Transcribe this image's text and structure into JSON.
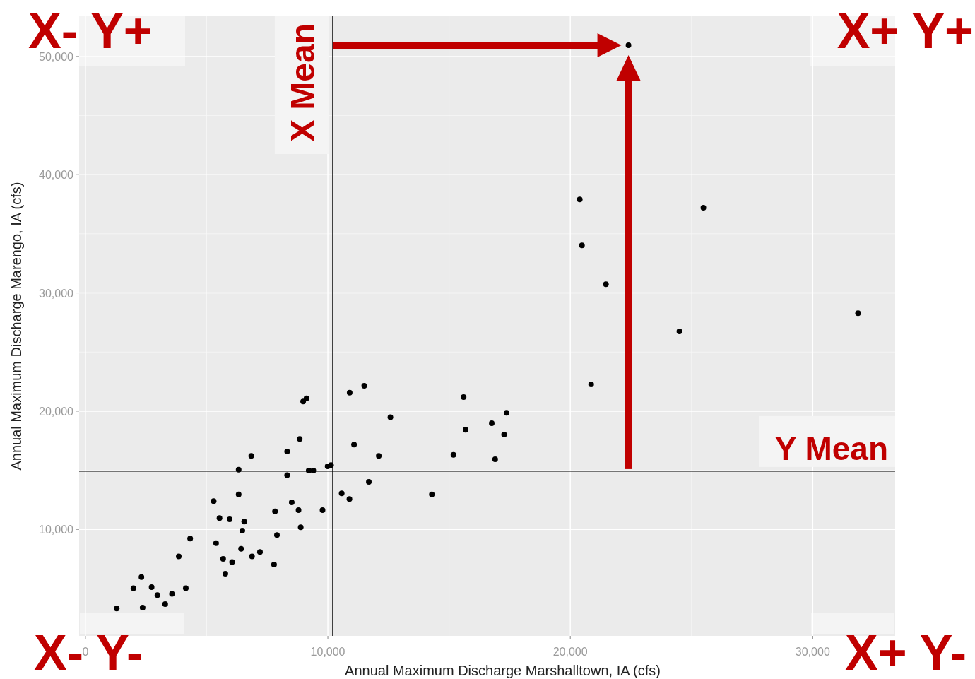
{
  "chart_data": {
    "type": "scatter",
    "xlabel": "Annual Maximum Discharge Marshalltown, IA (cfs)",
    "ylabel": "Annual Maximum Discharge Marengo, IA (cfs)",
    "xlim": [
      -260,
      33400
    ],
    "ylim": [
      990,
      53400
    ],
    "xticks": [
      {
        "value": 0,
        "label": "0"
      },
      {
        "value": 10000,
        "label": "10,000"
      },
      {
        "value": 20000,
        "label": "20,000"
      },
      {
        "value": 30000,
        "label": "30,000"
      }
    ],
    "yticks": [
      {
        "value": 10000,
        "label": "10,000"
      },
      {
        "value": 20000,
        "label": "20,000"
      },
      {
        "value": 30000,
        "label": "30,000"
      },
      {
        "value": 40000,
        "label": "40,000"
      },
      {
        "value": 50000,
        "label": "50,000"
      }
    ],
    "grid": true,
    "marker": "circle",
    "series": [
      {
        "color": "#000000",
        "x": [
          10900,
          8980,
          9120,
          8840,
          11080,
          8320,
          6840,
          6320,
          9990,
          10130,
          9210,
          9400,
          8320,
          6320,
          5290,
          10570,
          10890,
          8510,
          7820,
          8790,
          9780,
          5530,
          5950,
          6550,
          6470,
          8880,
          7900,
          4320,
          5390,
          6420,
          7200,
          3850,
          5680,
          6870,
          6050,
          7780,
          5770,
          2310,
          1980,
          2730,
          4140,
          2970,
          3570,
          3290,
          1290,
          2360,
          11500,
          12580,
          12100,
          11690,
          14290,
          15180,
          15600,
          15680,
          16760,
          17370,
          17270,
          16900,
          20390,
          20480,
          21470,
          20860,
          22400,
          25490,
          24500,
          31870
        ],
        "values": [
          21570,
          20820,
          21090,
          17650,
          17170,
          16590,
          16210,
          15050,
          15340,
          15440,
          14980,
          14980,
          14580,
          12950,
          12390,
          13050,
          12570,
          12290,
          11530,
          11630,
          11630,
          10950,
          10850,
          10650,
          9900,
          10180,
          9520,
          9220,
          8840,
          8360,
          8090,
          7710,
          7510,
          7710,
          7230,
          7030,
          6250,
          5970,
          5020,
          5120,
          5020,
          4440,
          4540,
          3680,
          3310,
          3380,
          22150,
          19480,
          16210,
          14020,
          12950,
          16310,
          21190,
          18430,
          18980,
          19860,
          18020,
          15930,
          37910,
          34030,
          30740,
          22260,
          50950,
          37200,
          26740,
          28290
        ]
      }
    ],
    "ref_lines": [
      {
        "axis": "x",
        "value": 10200,
        "label": "X Mean",
        "color": "#000000"
      },
      {
        "axis": "y",
        "value": 14920,
        "label": "Y Mean",
        "color": "#000000"
      }
    ],
    "annotations": [
      "X- Y+",
      "X+ Y+",
      "X- Y-",
      "X+ Y-"
    ]
  }
}
